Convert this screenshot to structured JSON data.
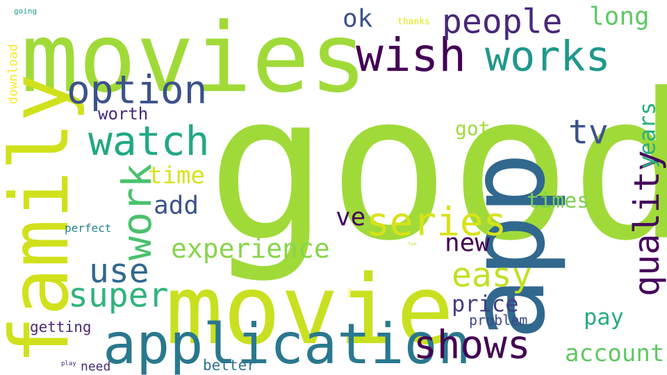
{
  "words": [
    {
      "text": "good",
      "color": "#a0da39"
    },
    {
      "text": "movies",
      "color": "#a0da39"
    },
    {
      "text": "movie",
      "color": "#c8e020"
    },
    {
      "text": "app",
      "color": "#31688e"
    },
    {
      "text": "family",
      "color": "#d0e11c"
    },
    {
      "text": "application",
      "color": "#2a788e"
    },
    {
      "text": "wish",
      "color": "#440154"
    },
    {
      "text": "works",
      "color": "#1f988b"
    },
    {
      "text": "option",
      "color": "#3b528b"
    },
    {
      "text": "people",
      "color": "#482878"
    },
    {
      "text": "watch",
      "color": "#22a884"
    },
    {
      "text": "quality",
      "color": "#46085c"
    },
    {
      "text": "series",
      "color": "#d8e219"
    },
    {
      "text": "shows",
      "color": "#440154"
    },
    {
      "text": "work",
      "color": "#4ac16d"
    },
    {
      "text": "easy",
      "color": "#c2df23"
    },
    {
      "text": "use",
      "color": "#31688e"
    },
    {
      "text": "super",
      "color": "#2fb47c"
    },
    {
      "text": "tv",
      "color": "#3b528b"
    },
    {
      "text": "experience",
      "color": "#86d549"
    },
    {
      "text": "long",
      "color": "#5ec962"
    },
    {
      "text": "years",
      "color": "#29af7f"
    },
    {
      "text": "price",
      "color": "#433e85"
    },
    {
      "text": "account",
      "color": "#5ec962"
    },
    {
      "text": "ok",
      "color": "#3b528b"
    },
    {
      "text": "new",
      "color": "#440154"
    },
    {
      "text": "ve",
      "color": "#46085c"
    },
    {
      "text": "add",
      "color": "#3b528b"
    },
    {
      "text": "time",
      "color": "#d8e219"
    },
    {
      "text": "times",
      "color": "#7ad151"
    },
    {
      "text": "got",
      "color": "#a0da39"
    },
    {
      "text": "pay",
      "color": "#27ad81"
    },
    {
      "text": "worth",
      "color": "#482878"
    },
    {
      "text": "getting",
      "color": "#482878"
    },
    {
      "text": "better",
      "color": "#2c728e"
    },
    {
      "text": "problem",
      "color": "#3e4989"
    },
    {
      "text": "need",
      "color": "#472d7b"
    },
    {
      "text": "perfect",
      "color": "#26828e"
    },
    {
      "text": "download",
      "color": "#fde725"
    },
    {
      "text": "thanks",
      "color": "#e5e419"
    },
    {
      "text": "going",
      "color": "#1f988b"
    },
    {
      "text": "play",
      "color": "#482878"
    },
    {
      "text": "fun",
      "color": "#b5de2b"
    },
    {
      "text": "wow",
      "color": "#fde725"
    }
  ]
}
